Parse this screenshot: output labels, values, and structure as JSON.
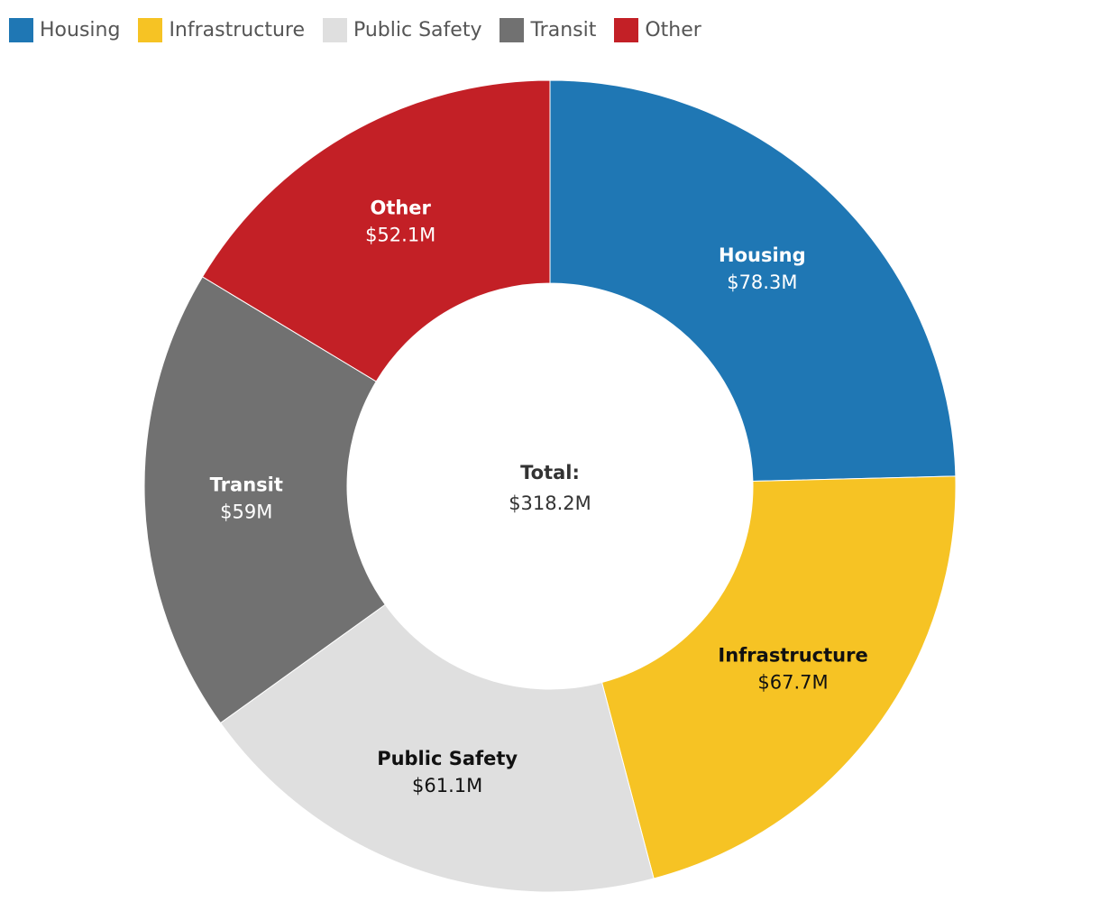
{
  "chart_data": {
    "type": "pie",
    "variant": "donut",
    "categories": [
      "Housing",
      "Infrastructure",
      "Public Safety",
      "Transit",
      "Other"
    ],
    "values": [
      78.3,
      67.7,
      61.1,
      59,
      52.1
    ],
    "data_labels": [
      "$78.3M",
      "$67.7M",
      "$61.1M",
      "$59M",
      "$52.1M"
    ],
    "colors": [
      "#1f77b4",
      "#f6c324",
      "#dfdfdf",
      "#717171",
      "#c32026"
    ],
    "label_text_colors": [
      "#ffffff",
      "#111111",
      "#111111",
      "#ffffff",
      "#ffffff"
    ],
    "center_label": "Total:",
    "center_value": "$318.2M",
    "legend_position": "top-left",
    "start": "12 o'clock, clockwise"
  }
}
